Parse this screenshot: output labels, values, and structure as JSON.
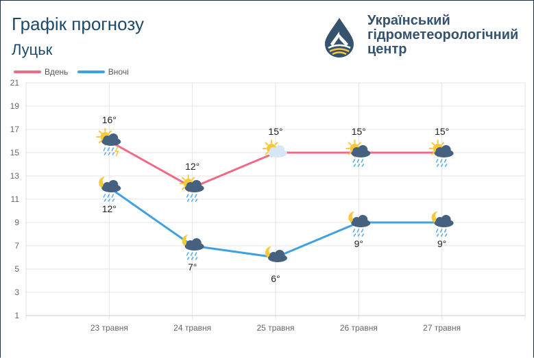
{
  "header": {
    "title": "Графік прогнозу",
    "city": "Луцьк",
    "org_name": "Український гідрометеорологічний центр"
  },
  "legend": {
    "day_label": "Вдень",
    "night_label": "Вночі"
  },
  "colors": {
    "day": "#f06a86",
    "night": "#3fa1e2",
    "title": "#1c4a6b",
    "logo": "#35526e",
    "sun": "#f7c93a",
    "cloud_dark": "#46607f",
    "rain": "#5fb0ea"
  },
  "chart_data": {
    "type": "line",
    "title": "Графік прогнозу",
    "categories": [
      "23 травня",
      "24 травня",
      "25 травня",
      "26 травня",
      "27 травня"
    ],
    "ylim": [
      1,
      21
    ],
    "yticks": [
      1,
      3,
      5,
      7,
      9,
      11,
      13,
      15,
      17,
      19,
      21
    ],
    "grid": true,
    "legend_position": "top-left",
    "series": [
      {
        "name": "Вдень",
        "values": [
          16,
          12,
          15,
          15,
          15
        ],
        "labels": [
          "16°",
          "12°",
          "15°",
          "15°",
          "15°"
        ],
        "icons": [
          "sun-cloud-thunder-rain-icon",
          "sun-cloud-rain-icon",
          "sun-cloud-icon",
          "sun-cloud-rain-icon",
          "sun-cloud-rain-icon"
        ]
      },
      {
        "name": "Вночі",
        "values": [
          12,
          7,
          6,
          9,
          9
        ],
        "labels": [
          "12°",
          "7°",
          "6°",
          "9°",
          "9°"
        ],
        "icons": [
          "moon-cloud-rain-icon",
          "moon-cloud-rain-icon",
          "moon-cloud-icon",
          "moon-cloud-rain-icon",
          "moon-cloud-rain-icon"
        ]
      }
    ]
  }
}
